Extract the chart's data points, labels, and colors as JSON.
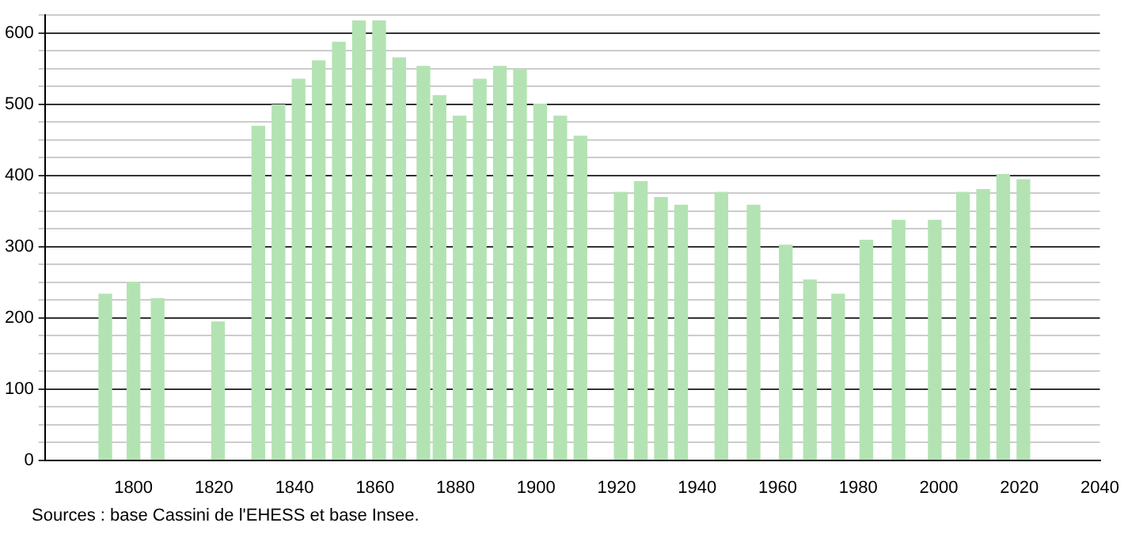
{
  "chart_data": {
    "type": "bar",
    "x": [
      1793,
      1800,
      1806,
      1821,
      1831,
      1836,
      1841,
      1846,
      1851,
      1856,
      1861,
      1866,
      1872,
      1876,
      1881,
      1886,
      1891,
      1896,
      1901,
      1906,
      1911,
      1921,
      1926,
      1931,
      1936,
      1946,
      1954,
      1962,
      1968,
      1975,
      1982,
      1990,
      1999,
      2006,
      2011,
      2016,
      2021
    ],
    "values": [
      233,
      250,
      227,
      194,
      469,
      499,
      535,
      561,
      587,
      617,
      617,
      565,
      553,
      512,
      483,
      535,
      553,
      549,
      500,
      483,
      455,
      376,
      391,
      369,
      358,
      376,
      358,
      302,
      253,
      233,
      309,
      337,
      337,
      376,
      380,
      401,
      394
    ],
    "color": "#b3e3b3",
    "xlim": [
      1778,
      2040
    ],
    "xticks": [
      1800,
      1820,
      1840,
      1860,
      1880,
      1900,
      1920,
      1940,
      1960,
      1980,
      2000,
      2020,
      2040
    ],
    "ylim": [
      0,
      625
    ],
    "yticks": [
      0,
      {
        "value": 25,
        "label": null
      },
      {
        "value": 50,
        "label": null
      },
      {
        "value": 75,
        "label": null
      },
      100,
      {
        "value": 125,
        "label": null
      },
      {
        "value": 150,
        "label": null
      },
      {
        "value": 175,
        "label": null
      },
      200,
      {
        "value": 225,
        "label": null
      },
      {
        "value": 250,
        "label": null
      },
      {
        "value": 275,
        "label": null
      },
      300,
      {
        "value": 325,
        "label": null
      },
      {
        "value": 350,
        "label": null
      },
      {
        "value": 375,
        "label": null
      },
      400,
      {
        "value": 425,
        "label": null
      },
      {
        "value": 450,
        "label": null
      },
      {
        "value": 475,
        "label": null
      },
      500,
      {
        "value": 525,
        "label": null
      },
      {
        "value": 550,
        "label": null
      },
      {
        "value": 575,
        "label": null
      },
      600,
      {
        "value": 625,
        "label": null
      }
    ],
    "grid": "y",
    "legend": false,
    "annotations": [
      "Sources : base Cassini de l'EHESS et base Insee."
    ]
  }
}
